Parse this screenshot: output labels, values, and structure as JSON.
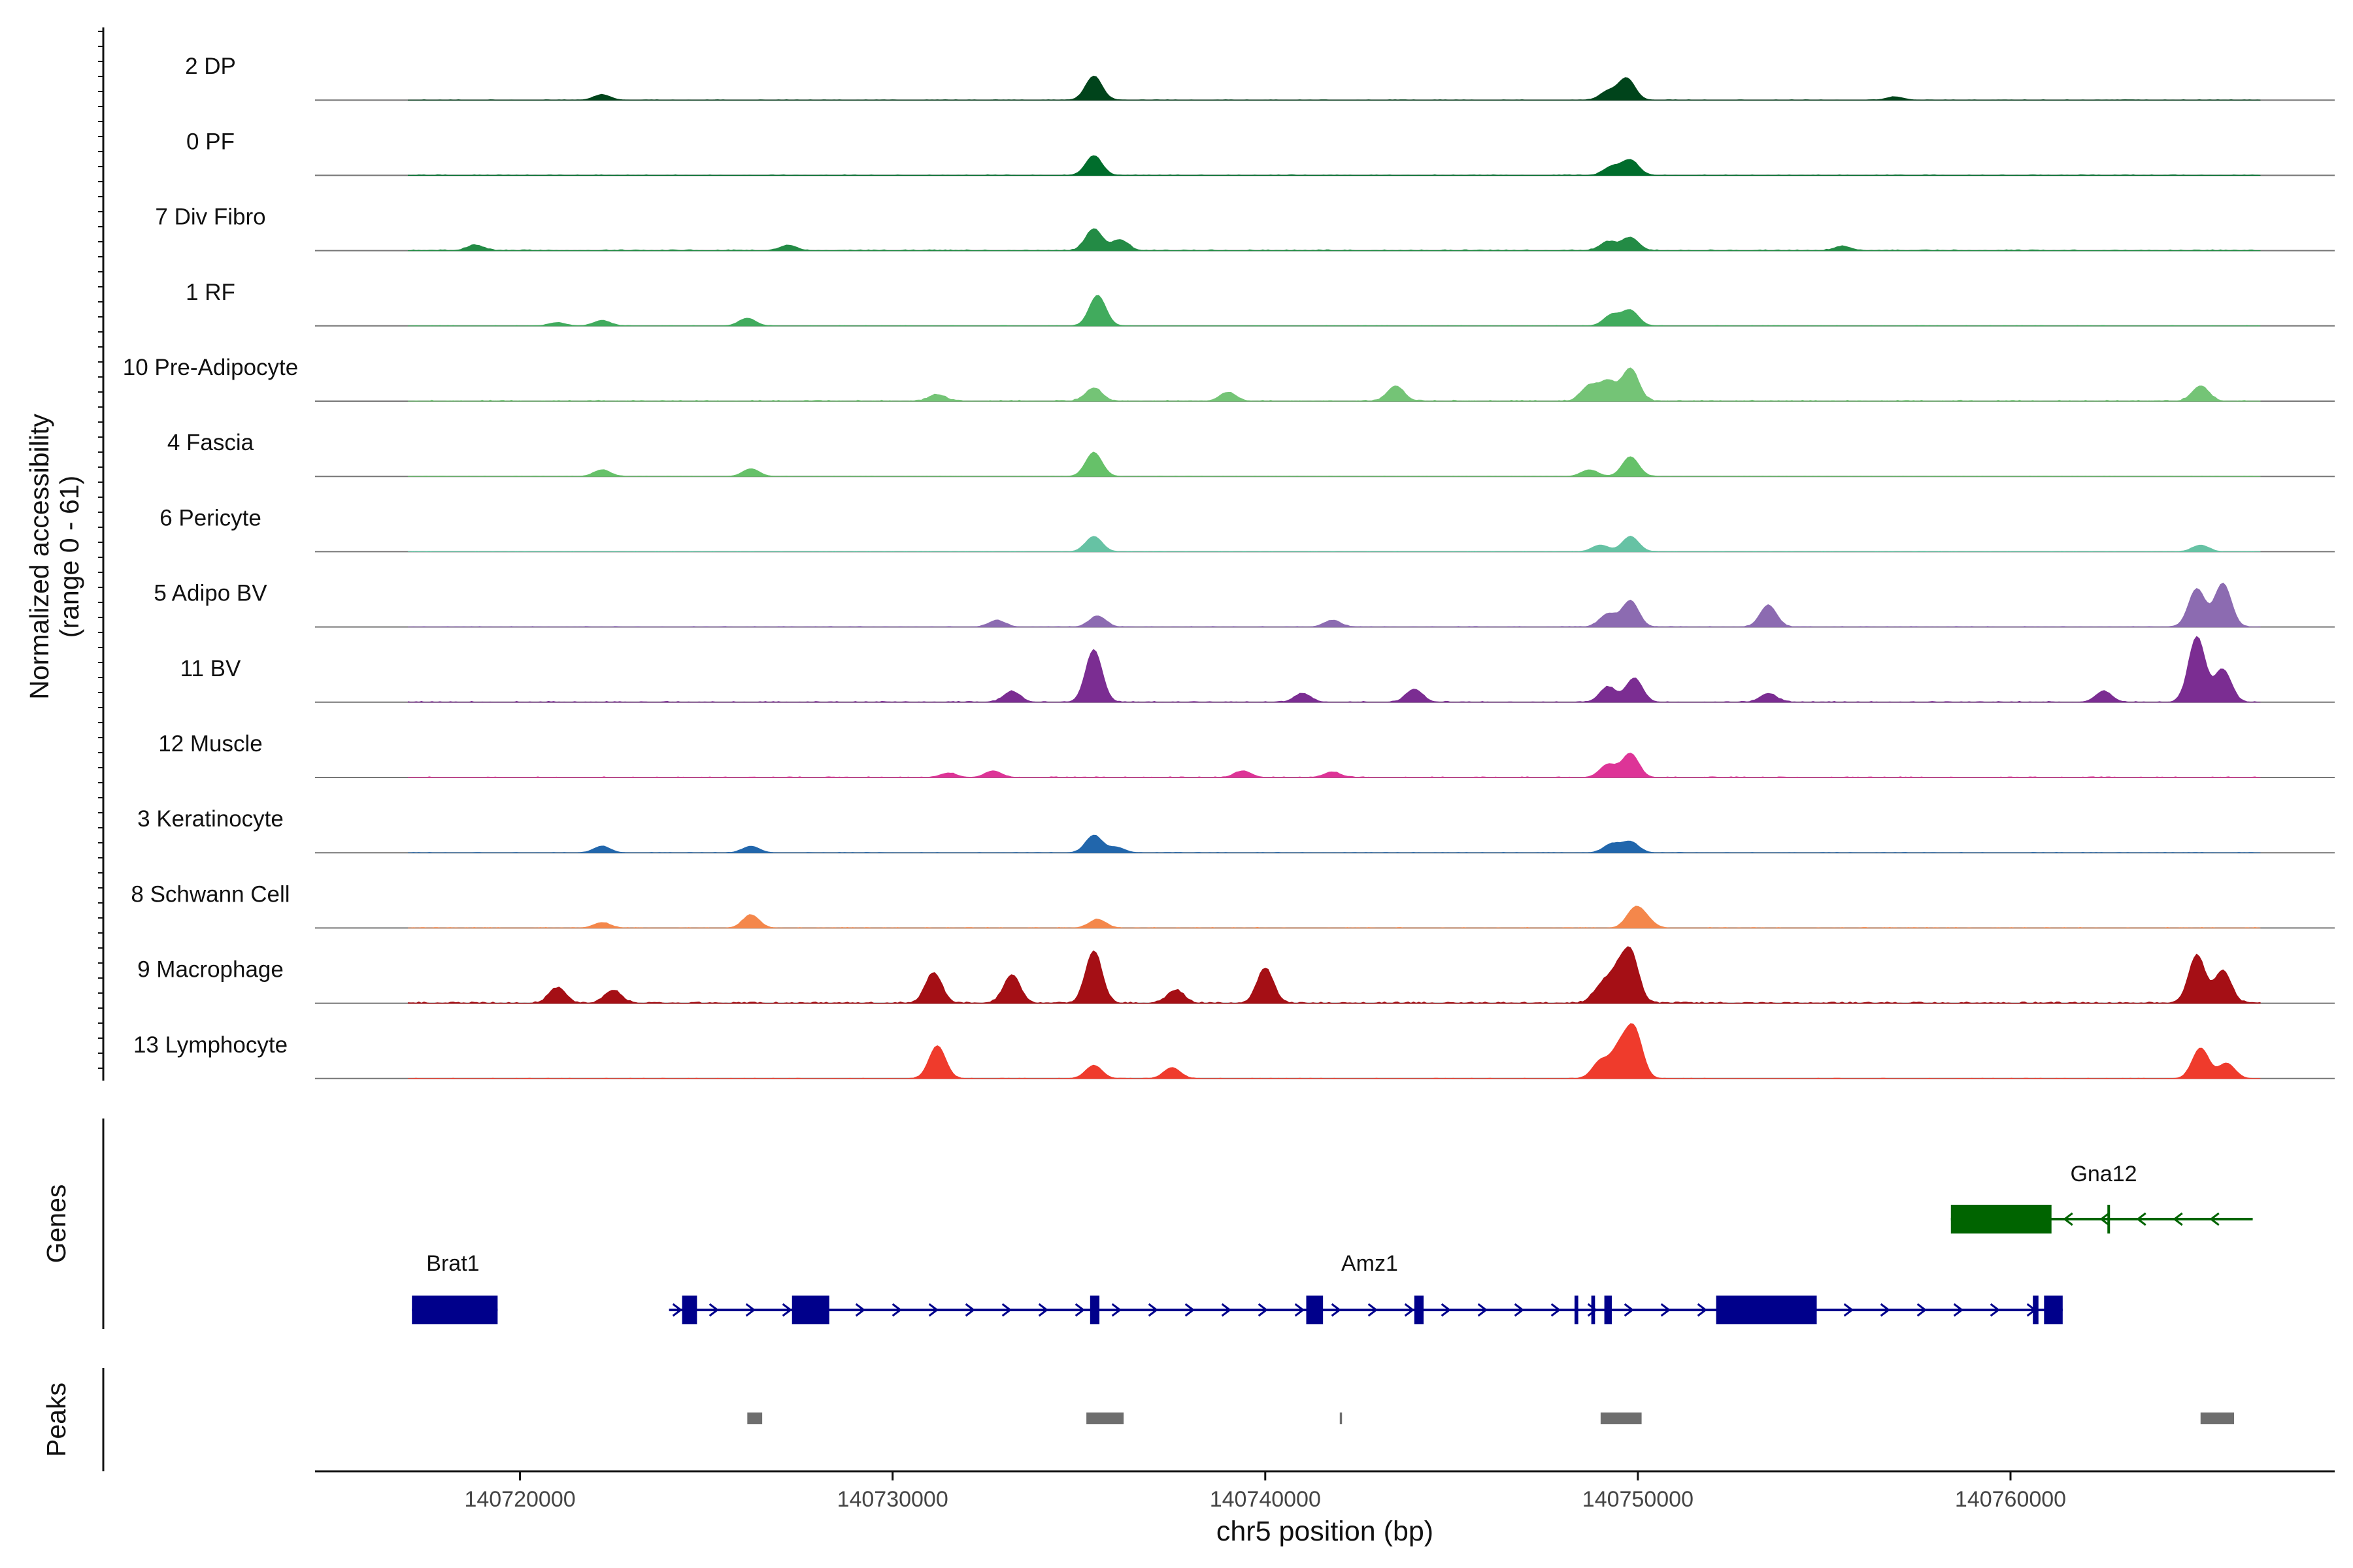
{
  "chart_data": {
    "type": "area",
    "title": "",
    "ylabel": "Normalized accessibility",
    "ylabel_range": "(range 0 - 61)",
    "y_range": [
      0,
      61
    ],
    "xlabel": "chr5 position (bp)",
    "xlim": [
      140714500,
      140768700
    ],
    "xticks": [
      140720000,
      140730000,
      140740000,
      140750000,
      140760000
    ],
    "xtick_labels": [
      "140720000",
      "140730000",
      "140740000",
      "140750000",
      "140760000"
    ],
    "genes_label": "Genes",
    "peaks_label": "Peaks",
    "tracks": [
      {
        "name": "2 DP",
        "color": "#00441b",
        "noise": 0.02,
        "density": 0.3,
        "peaks": [
          [
            140722200,
            5
          ],
          [
            140735400,
            22
          ],
          [
            140749200,
            8
          ],
          [
            140749700,
            20
          ],
          [
            140756900,
            3
          ]
        ]
      },
      {
        "name": "0 PF",
        "color": "#006d2c",
        "noise": 0.03,
        "density": 0.4,
        "peaks": [
          [
            140735400,
            18
          ],
          [
            140749300,
            8
          ],
          [
            140749800,
            14
          ]
        ]
      },
      {
        "name": "7 Div Fibro",
        "color": "#238b45",
        "noise": 0.05,
        "density": 0.5,
        "peaks": [
          [
            140718800,
            5
          ],
          [
            140727200,
            5
          ],
          [
            140735400,
            20
          ],
          [
            140736100,
            10
          ],
          [
            140749200,
            8
          ],
          [
            140749800,
            12
          ],
          [
            140755500,
            4
          ]
        ]
      },
      {
        "name": "1 RF",
        "color": "#41ab5d",
        "noise": 0.02,
        "density": 0.3,
        "peaks": [
          [
            140721000,
            3
          ],
          [
            140722200,
            5
          ],
          [
            140726100,
            7
          ],
          [
            140735500,
            28
          ],
          [
            140749300,
            10
          ],
          [
            140749800,
            14
          ]
        ]
      },
      {
        "name": "10 Pre-Adipocyte",
        "color": "#74c476",
        "noise": 0.06,
        "density": 0.45,
        "peaks": [
          [
            140731200,
            6
          ],
          [
            140735400,
            12
          ],
          [
            140739000,
            8
          ],
          [
            140743500,
            14
          ],
          [
            140748700,
            14
          ],
          [
            140749200,
            18
          ],
          [
            140749800,
            30
          ],
          [
            140765100,
            14
          ]
        ]
      },
      {
        "name": "4 Fascia",
        "color": "#66c169",
        "noise": 0.02,
        "density": 0.3,
        "peaks": [
          [
            140722200,
            6
          ],
          [
            140726200,
            7
          ],
          [
            140735400,
            22
          ],
          [
            140748700,
            6
          ],
          [
            140749800,
            18
          ]
        ]
      },
      {
        "name": "6 Pericyte",
        "color": "#66c2a4",
        "noise": 0.02,
        "density": 0.3,
        "peaks": [
          [
            140735400,
            14
          ],
          [
            140749000,
            6
          ],
          [
            140749800,
            14
          ],
          [
            140765100,
            6
          ]
        ]
      },
      {
        "name": "5 Adipo BV",
        "color": "#8c6bb1",
        "noise": 0.03,
        "density": 0.4,
        "peaks": [
          [
            140732800,
            6
          ],
          [
            140735500,
            10
          ],
          [
            140741800,
            6
          ],
          [
            140749200,
            12
          ],
          [
            140749800,
            24
          ],
          [
            140753500,
            20
          ],
          [
            140765000,
            35
          ],
          [
            140765700,
            40
          ]
        ]
      },
      {
        "name": "11 BV",
        "color": "#7b2d92",
        "noise": 0.05,
        "density": 0.4,
        "peaks": [
          [
            140733200,
            10
          ],
          [
            140735400,
            48
          ],
          [
            140741000,
            8
          ],
          [
            140744000,
            12
          ],
          [
            140749200,
            14
          ],
          [
            140749900,
            22
          ],
          [
            140753500,
            8
          ],
          [
            140762500,
            10
          ],
          [
            140765000,
            60
          ],
          [
            140765700,
            30
          ]
        ]
      },
      {
        "name": "12 Muscle",
        "color": "#dd3497",
        "noise": 0.04,
        "density": 0.35,
        "peaks": [
          [
            140731500,
            4
          ],
          [
            140732700,
            6
          ],
          [
            140739400,
            6
          ],
          [
            140741800,
            5
          ],
          [
            140749200,
            12
          ],
          [
            140749800,
            22
          ]
        ]
      },
      {
        "name": "3 Keratinocyte",
        "color": "#2166ac",
        "noise": 0.02,
        "density": 0.3,
        "peaks": [
          [
            140722200,
            6
          ],
          [
            140726200,
            6
          ],
          [
            140735400,
            16
          ],
          [
            140736000,
            5
          ],
          [
            140749300,
            8
          ],
          [
            140749800,
            10
          ]
        ]
      },
      {
        "name": "8 Schwann Cell",
        "color": "#f4874b",
        "noise": 0.03,
        "density": 0.3,
        "peaks": [
          [
            140722200,
            5
          ],
          [
            140726200,
            12
          ],
          [
            140735500,
            8
          ],
          [
            140749900,
            16
          ],
          [
            140750200,
            8
          ]
        ]
      },
      {
        "name": "9 Macrophage",
        "color": "#a50f15",
        "noise": 0.08,
        "density": 0.6,
        "peaks": [
          [
            140721000,
            14
          ],
          [
            140722500,
            12
          ],
          [
            140731100,
            28
          ],
          [
            140733200,
            26
          ],
          [
            140735400,
            48
          ],
          [
            140737600,
            12
          ],
          [
            140740000,
            32
          ],
          [
            140749000,
            14
          ],
          [
            140749400,
            24
          ],
          [
            140749800,
            46
          ],
          [
            140765000,
            44
          ],
          [
            140765700,
            30
          ]
        ]
      },
      {
        "name": "13 Lymphocyte",
        "color": "#ef3b2c",
        "noise": 0.02,
        "density": 0.25,
        "peaks": [
          [
            140731200,
            30
          ],
          [
            140735400,
            12
          ],
          [
            140737500,
            10
          ],
          [
            140749000,
            16
          ],
          [
            140749500,
            26
          ],
          [
            140749900,
            44
          ],
          [
            140765100,
            28
          ],
          [
            140765800,
            14
          ]
        ]
      }
    ],
    "genes": [
      {
        "name": "Brat1",
        "strand": "-",
        "color": "#00008b",
        "start": 140717100,
        "end": 140719400,
        "exons": [
          [
            140717100,
            140719400
          ]
        ]
      },
      {
        "name": "Amz1",
        "strand": "+",
        "color": "#00008b",
        "start": 140724000,
        "end": 140761400,
        "exons": [
          [
            140724350,
            140724750
          ],
          [
            140727300,
            140728300
          ],
          [
            140735300,
            140735550
          ],
          [
            140741100,
            140741550
          ],
          [
            140744000,
            140744250
          ],
          [
            140748300,
            140748400
          ],
          [
            140748750,
            140748850
          ],
          [
            140749100,
            140749300
          ],
          [
            140752100,
            140754800
          ],
          [
            140760600,
            140760750
          ],
          [
            140760900,
            140761400
          ]
        ]
      },
      {
        "name": "Gna12",
        "strand": "-",
        "color": "#006400",
        "start": 140758400,
        "end": 140766500,
        "exons": [
          [
            140758400,
            140761100
          ],
          [
            140762600,
            140762650
          ]
        ]
      }
    ],
    "peaks": [
      [
        140726100,
        140726500
      ],
      [
        140735200,
        140736200
      ],
      [
        140742000,
        140742060
      ],
      [
        140749000,
        140750100
      ],
      [
        140765100,
        140766000
      ]
    ]
  }
}
